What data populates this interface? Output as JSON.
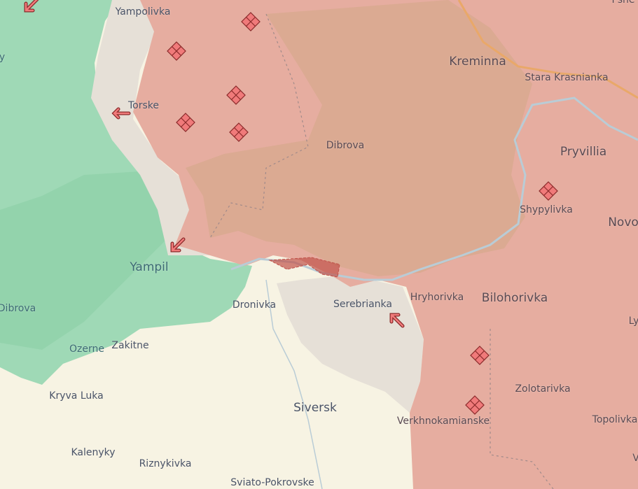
{
  "map": {
    "colors": {
      "occupied": "#e6ada0",
      "occupied_dark": "#d8a98e",
      "liberated_green": "#9fd9b6",
      "contested_gray": "#e6e0d7",
      "background": "#f7f3e3",
      "marker": "#f07a7a",
      "river": "#b9ccd6",
      "road": "#e9a869"
    },
    "places": [
      {
        "name": "Yampolivka",
        "style": "normal"
      },
      {
        "name": "Torske",
        "style": "normal"
      },
      {
        "name": "Kreminna",
        "style": "big"
      },
      {
        "name": "Stara Krasnianka",
        "style": "normal"
      },
      {
        "name": "Dibrova",
        "style": "normal"
      },
      {
        "name": "Pryvillia",
        "style": "big"
      },
      {
        "name": "Shypylivka",
        "style": "normal"
      },
      {
        "name": "Novo",
        "style": "big"
      },
      {
        "name": "Yampil",
        "style": "big"
      },
      {
        "name": "Dibrova",
        "style": "normal"
      },
      {
        "name": "Dronivka",
        "style": "normal"
      },
      {
        "name": "Serebrianka",
        "style": "normal"
      },
      {
        "name": "Hryhorivka",
        "style": "normal"
      },
      {
        "name": "Bilohorivka",
        "style": "big"
      },
      {
        "name": "Ozerne",
        "style": "normal"
      },
      {
        "name": "Zakitne",
        "style": "normal"
      },
      {
        "name": "Kryva Luka",
        "style": "normal"
      },
      {
        "name": "Siversk",
        "style": "big"
      },
      {
        "name": "Zolotarivka",
        "style": "normal"
      },
      {
        "name": "Verkhnokamianske",
        "style": "normal"
      },
      {
        "name": "Topolivka",
        "style": "normal"
      },
      {
        "name": "Kalenyky",
        "style": "normal"
      },
      {
        "name": "Riznykivka",
        "style": "normal"
      },
      {
        "name": "Sviato-Pokrovske",
        "style": "normal"
      },
      {
        "name": "Ly",
        "style": "normal"
      },
      {
        "name": "Pshe",
        "style": "normal"
      },
      {
        "name": "y",
        "style": "normal"
      },
      {
        "name": "V",
        "style": "normal"
      }
    ],
    "markers": {
      "fortification_icon": "diamond-grid-icon",
      "attack_icon": "attack-arrow-icon"
    }
  }
}
